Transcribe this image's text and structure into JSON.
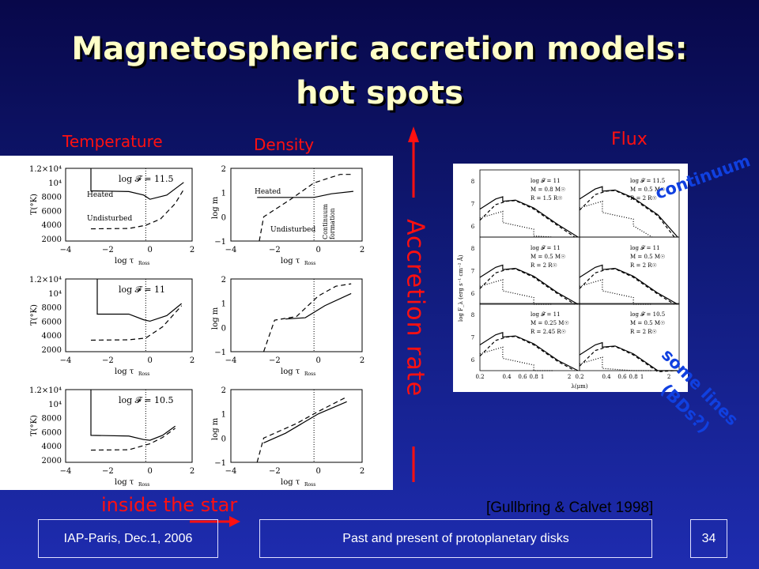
{
  "title": {
    "line1": "Magnetospheric accretion models:",
    "line2": "hot spots"
  },
  "labels": {
    "temperature": "Temperature",
    "density": "Density",
    "flux": "Flux",
    "accretion_rate": "Accretion rate",
    "continuum": "continuum",
    "some_lines": "some lines",
    "bds": "(BDs?)",
    "inside_star": "inside the star",
    "reference": "[Gullbring & Calvet 1998]"
  },
  "left_figure": {
    "temp_ylabel": "T(°K)",
    "dens_ylabel": "log m",
    "xlabel": "log τ",
    "xlabel_sub": "Ross",
    "temp_ticks": [
      "1.2×10⁴",
      "10⁴",
      "8000",
      "6000",
      "4000",
      "2000"
    ],
    "dens_ticks": [
      "2",
      "1",
      "0",
      "−1"
    ],
    "x_ticks": [
      "−4",
      "−2",
      "0",
      "2"
    ],
    "heated": "Heated",
    "undisturbed": "Undisturbed",
    "continuum_formation": [
      "Continuum",
      "formation"
    ],
    "rows": [
      {
        "flux_label": "log 𝓕 = 11.5"
      },
      {
        "flux_label": "log 𝓕 = 11"
      },
      {
        "flux_label": "log 𝓕 = 10.5"
      }
    ]
  },
  "right_figure": {
    "ylabel": "log F_λ (erg s⁻¹ cm⁻² Å)",
    "xlabel": "λ(μm)",
    "x_ticks": [
      "0.2",
      "0.4",
      "0.6",
      "0.8",
      "1",
      "2"
    ],
    "y_ticks": [
      "8",
      "7",
      "6"
    ],
    "panels": [
      [
        "log 𝓕 = 11",
        "M = 0.8 M☉",
        "R = 1.5 R☉"
      ],
      [
        "log 𝓕 = 11.5",
        "M = 0.5 M☉",
        "R = 2 R☉"
      ],
      [
        "log 𝓕 = 11",
        "M = 0.5 M☉",
        "R = 2 R☉"
      ],
      [
        "log 𝓕 = 11",
        "M = 0.5 M☉",
        "R = 2 R☉"
      ],
      [
        "log 𝓕 = 11",
        "M = 0.25 M☉",
        "R = 2.45 R☉"
      ],
      [
        "log 𝓕 = 10.5",
        "M = 0.5 M☉",
        "R = 2 R☉"
      ]
    ]
  },
  "footer": {
    "left": "IAP-Paris, Dec.1, 2006",
    "center": "Past and present of protoplanetary disks",
    "page": "34"
  },
  "colors": {
    "title": "#ffffc8",
    "red": "#ff1010",
    "blue_annot": "#1040e0"
  }
}
